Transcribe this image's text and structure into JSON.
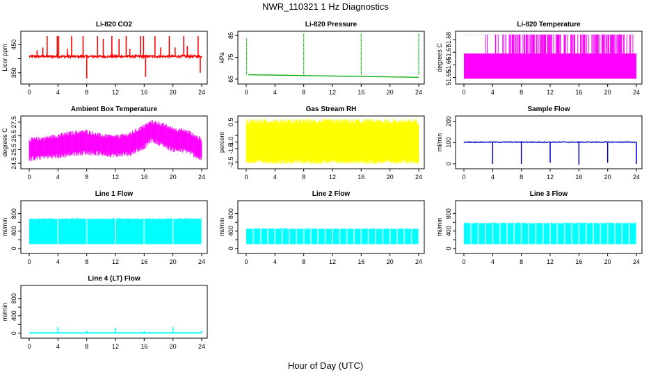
{
  "title": "NWR_110321  1 Hz Diagnostics",
  "xlabel": "Hour of Day (UTC)",
  "chart_data": [
    {
      "type": "line",
      "title": "Li-820 CO2",
      "ylabel": "Licor ppm",
      "color": "#ff0000",
      "xlim": [
        0,
        24
      ],
      "ylim": [
        320,
        490
      ],
      "x_ticks": [
        0,
        4,
        8,
        12,
        16,
        20,
        24
      ],
      "y_ticks": [
        350,
        400,
        450
      ],
      "y_tick_labels": [
        "350",
        "",
        "450"
      ],
      "series": [
        {
          "name": "",
          "baseline": 408,
          "noise": 4,
          "spikes_x": [
            1.1,
            1.9,
            2.5,
            3.9,
            4.1,
            5.3,
            5.9,
            7.5,
            8.0,
            9.5,
            10.3,
            11.5,
            12.5,
            13.5,
            14.0,
            15.5,
            15.9,
            16.2,
            17.5,
            18.3,
            19.5,
            20.3,
            21.5,
            22.0,
            23.5,
            23.8
          ],
          "spikes_y": [
            430,
            440,
            480,
            480,
            480,
            435,
            480,
            480,
            330,
            480,
            470,
            480,
            470,
            480,
            435,
            480,
            480,
            335,
            480,
            440,
            480,
            440,
            480,
            445,
            480,
            350
          ]
        }
      ]
    },
    {
      "type": "line",
      "title": "Li-820 Pressure",
      "ylabel": "kPa",
      "color": "#00aa00",
      "xlim": [
        0,
        24
      ],
      "ylim": [
        64,
        86
      ],
      "x_ticks": [
        0,
        4,
        8,
        12,
        16,
        20,
        24
      ],
      "y_ticks": [
        65,
        75,
        85
      ],
      "y_tick_labels": [
        "65",
        "75",
        "85"
      ],
      "series": [
        {
          "name": "",
          "start": 67.0,
          "end": 65.8,
          "spikes_x": [
            0.05,
            8.0,
            16.0,
            24.0
          ],
          "spikes_y": [
            84,
            86,
            86,
            86
          ]
        }
      ]
    },
    {
      "type": "line",
      "title": "Li-820 Temperature",
      "ylabel": "degrees C",
      "color": "#ff00ff",
      "xlim": [
        0,
        24
      ],
      "ylim": [
        51.647,
        51.685
      ],
      "x_ticks": [
        0,
        4,
        8,
        12,
        16,
        20,
        24
      ],
      "y_ticks": [
        51.65,
        51.66,
        51.67,
        51.68
      ],
      "y_tick_labels": [
        "51.65",
        "51.66",
        "51.67",
        "51.68"
      ],
      "series": [
        {
          "name": "",
          "low": 51.649,
          "mid": 51.669,
          "high": 51.684
        }
      ]
    },
    {
      "type": "line",
      "title": "Ambient Box Temperature",
      "ylabel": "degrees C",
      "color": "#ff00ff",
      "xlim": [
        0,
        24
      ],
      "ylim": [
        24.3,
        27.8
      ],
      "x_ticks": [
        0,
        4,
        8,
        12,
        16,
        20,
        24
      ],
      "y_ticks": [
        24.5,
        25.5,
        26.5,
        27.5
      ],
      "y_tick_labels": [
        "24.5",
        "25.5",
        "26.5",
        "27.5"
      ],
      "series": [
        {
          "name": "",
          "x": [
            0,
            2,
            4,
            6,
            8,
            10,
            12,
            14,
            16,
            17,
            18,
            20,
            22,
            24
          ],
          "lower": [
            24.8,
            25.0,
            25.0,
            25.2,
            25.3,
            25.2,
            25.1,
            25.2,
            25.7,
            26.2,
            26.0,
            25.5,
            25.4,
            24.8
          ],
          "upper": [
            26.2,
            26.3,
            26.5,
            26.7,
            26.8,
            26.5,
            26.4,
            26.6,
            27.2,
            27.5,
            27.4,
            27.0,
            26.8,
            26.2
          ]
        }
      ]
    },
    {
      "type": "line",
      "title": "Gas Stream RH",
      "ylabel": "percent",
      "color": "#ffff00",
      "xlim": [
        0,
        24
      ],
      "ylim": [
        -2.8,
        0.8
      ],
      "x_ticks": [
        0,
        4,
        8,
        12,
        16,
        20,
        24
      ],
      "y_ticks": [
        -2.5,
        -1.5,
        -1.0,
        -0.5,
        0.5
      ],
      "y_tick_labels": [
        "-2.5",
        "-1.5",
        "-1.0",
        "",
        "0.5"
      ],
      "series": [
        {
          "name": "",
          "lower": -2.3,
          "upper": 0.3
        }
      ]
    },
    {
      "type": "line",
      "title": "Sample Flow",
      "ylabel": "ml/min",
      "color": "#0000cc",
      "xlim": [
        0,
        24
      ],
      "ylim": [
        -10,
        215
      ],
      "x_ticks": [
        0,
        4,
        8,
        12,
        16,
        20,
        24
      ],
      "y_ticks": [
        0,
        100,
        200
      ],
      "y_tick_labels": [
        "0",
        "100",
        "200"
      ],
      "series": [
        {
          "name": "",
          "baseline": 102,
          "dips_x": [
            4.0,
            8.0,
            12.0,
            16.0,
            20.0,
            24.0
          ],
          "dips_y": [
            0,
            0,
            5,
            -5,
            5,
            0
          ]
        }
      ]
    },
    {
      "type": "line",
      "title": "Line 1 Flow",
      "ylabel": "ml/min",
      "color": "#00ffff",
      "xlim": [
        0,
        24
      ],
      "ylim": [
        -50,
        1050
      ],
      "x_ticks": [
        0,
        4,
        8,
        12,
        16,
        20,
        24
      ],
      "y_ticks": [
        0,
        200,
        400,
        600,
        800
      ],
      "y_tick_labels": [
        "0",
        "",
        "400",
        "",
        "800"
      ],
      "series": [
        {
          "name": "",
          "lower": 100,
          "upper": 680,
          "gaps_x": [
            4,
            8,
            12,
            16,
            20
          ],
          "end": 24
        }
      ]
    },
    {
      "type": "line",
      "title": "Line 2 Flow",
      "ylabel": "ml/min",
      "color": "#00ffff",
      "xlim": [
        0,
        24
      ],
      "ylim": [
        -50,
        1050
      ],
      "x_ticks": [
        0,
        4,
        8,
        12,
        16,
        20,
        24
      ],
      "y_ticks": [
        0,
        200,
        400,
        600,
        800
      ],
      "y_tick_labels": [
        "0",
        "",
        "400",
        "",
        "800"
      ],
      "series": [
        {
          "name": "",
          "lower": 100,
          "upper": 450,
          "gaps_x": [
            1.0,
            2.0,
            3.0,
            4.0,
            5.0,
            6.0,
            7.0,
            8.0,
            9.0,
            10.0,
            11.0,
            12.0,
            13.0,
            14.0,
            15.0,
            16.0,
            17.0,
            18.0,
            19.0,
            20.0,
            21.0,
            22.0,
            23.0
          ],
          "end": 24
        }
      ]
    },
    {
      "type": "line",
      "title": "Line 3 Flow",
      "ylabel": "ml/min",
      "color": "#00ffff",
      "xlim": [
        0,
        24
      ],
      "ylim": [
        -50,
        1050
      ],
      "x_ticks": [
        0,
        4,
        8,
        12,
        16,
        20,
        24
      ],
      "y_ticks": [
        0,
        200,
        400,
        600,
        800
      ],
      "y_tick_labels": [
        "0",
        "",
        "400",
        "",
        "800"
      ],
      "series": [
        {
          "name": "",
          "lower": 100,
          "upper": 580,
          "gaps_x": [
            1.0,
            2.0,
            3.0,
            4.0,
            5.0,
            6.0,
            7.0,
            8.0,
            9.0,
            10.0,
            11.0,
            12.0,
            13.0,
            14.0,
            15.0,
            16.0,
            17.0,
            18.0,
            19.0,
            20.0,
            21.0,
            22.0,
            23.0
          ],
          "end": 24
        }
      ]
    },
    {
      "type": "line",
      "title": "Line 4 (LT) Flow",
      "ylabel": "ml/min",
      "color": "#00ffff",
      "xlim": [
        0,
        24
      ],
      "ylim": [
        -50,
        1050
      ],
      "x_ticks": [
        0,
        4,
        8,
        12,
        16,
        20,
        24
      ],
      "y_ticks": [
        0,
        200,
        400,
        600,
        800
      ],
      "y_tick_labels": [
        "0",
        "",
        "400",
        "",
        "800"
      ],
      "series": [
        {
          "name": "",
          "baseline": 8,
          "spikes_x": [
            4.0,
            8.0,
            12.0,
            16.0,
            20.0,
            24.0
          ],
          "spikes_y": [
            140,
            60,
            130,
            60,
            140,
            60
          ]
        }
      ]
    }
  ]
}
